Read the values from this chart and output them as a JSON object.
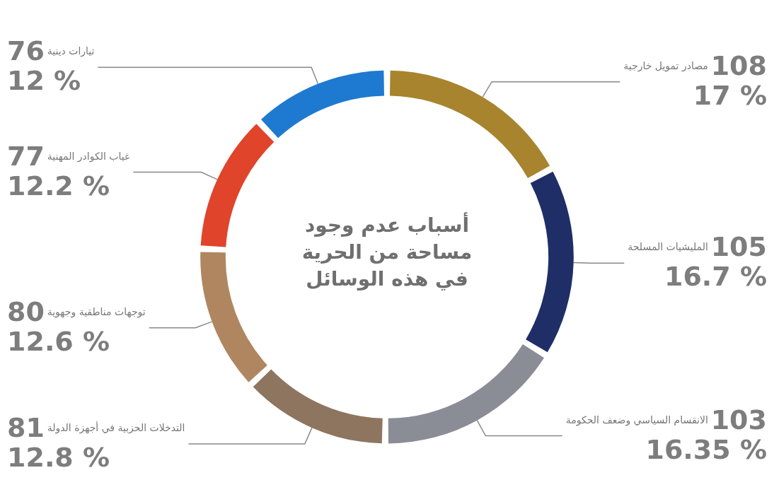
{
  "chart_data": {
    "type": "donut",
    "title": "أسباب عدم وجود\nمساحة من الحرية\nفي هذه الوسائل",
    "categories": [
      "مصادر تمويل خارجية",
      "المليشيات المسلحة",
      "الانقسام السياسي وضعف الحكومة",
      "التدخلات الحزبية في أجهزة الدولة",
      "توجهات مناطقية وجهوية",
      "غياب الكوادر المهنية",
      "تيارات دينية"
    ],
    "values": [
      108,
      105,
      103,
      81,
      80,
      77,
      76
    ],
    "annotations": [
      {
        "text": "17 %",
        "x": "مصادر تمويل خارجية"
      },
      {
        "text": "16.7 %",
        "x": "المليشيات المسلحة"
      },
      {
        "text": "16.35 %",
        "x": "الانقسام السياسي وضعف الحكومة"
      },
      {
        "text": "12.8 %",
        "x": "التدخلات الحزبية في أجهزة الدولة"
      },
      {
        "text": "12.6 %",
        "x": "توجهات مناطقية وجهوية"
      },
      {
        "text": "12.2 %",
        "x": "غياب الكوادر المهنية"
      },
      {
        "text": "12 %",
        "x": "تيارات دينية"
      }
    ],
    "colors": [
      "#a7842d",
      "#1f2e66",
      "#8a8c96",
      "#8e7560",
      "#b08660",
      "#e0442a",
      "#1e7ad0"
    ],
    "data_labels": true,
    "legend": false
  }
}
